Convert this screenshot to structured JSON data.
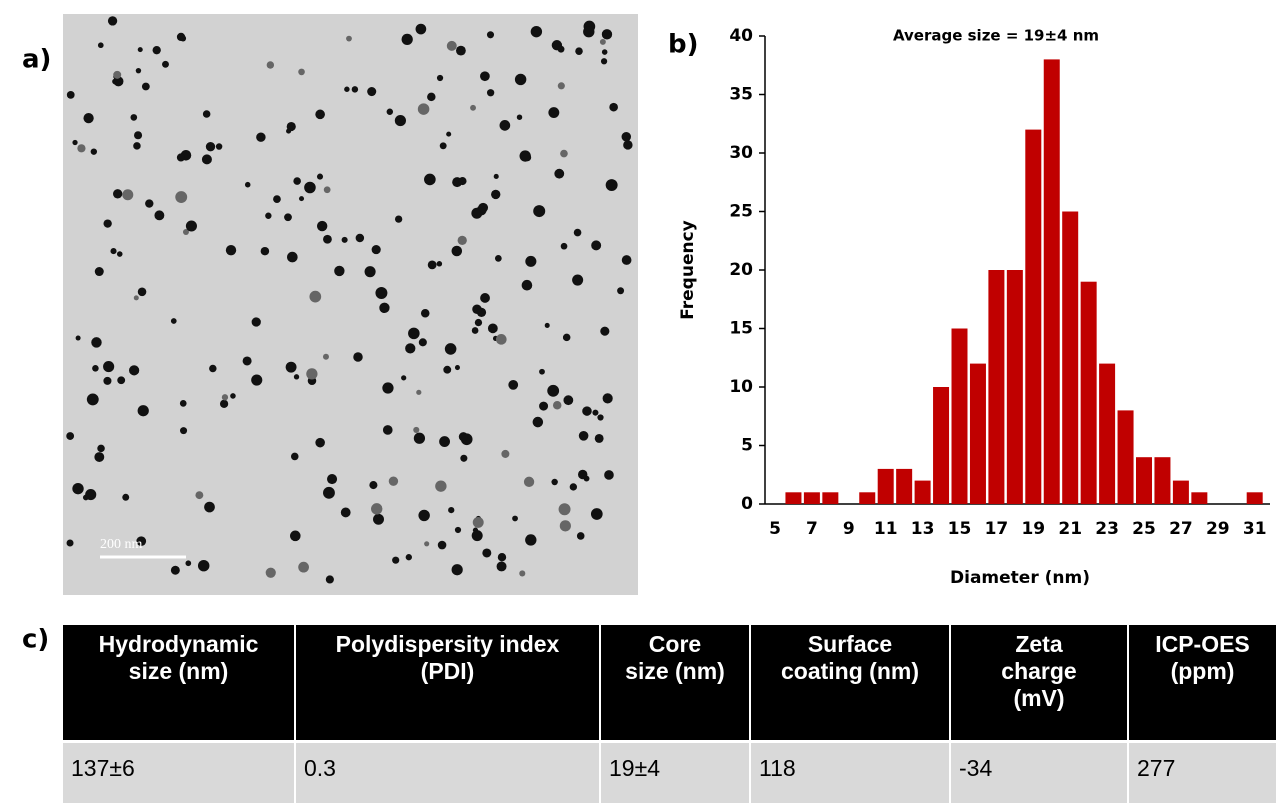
{
  "panel_labels": {
    "a": "a)",
    "b": "b)",
    "c": "c)"
  },
  "image": {
    "scale_bar": "200 nm"
  },
  "chart_data": {
    "type": "bar",
    "title": "Average size = 19±4 nm",
    "x_label": "Diameter (nm)",
    "y_label": "Frequency",
    "categories": [
      "5",
      null,
      "7",
      null,
      "9",
      null,
      "11",
      null,
      "13",
      null,
      "15",
      null,
      "17",
      null,
      "19",
      null,
      "21",
      null,
      "23",
      null,
      "25",
      null,
      "27",
      null,
      "29",
      null,
      "31"
    ],
    "values": [
      0,
      1,
      1,
      1,
      0,
      1,
      3,
      3,
      2,
      10,
      15,
      12,
      20,
      20,
      32,
      38,
      25,
      19,
      12,
      8,
      4,
      4,
      2,
      1,
      0,
      0,
      1
    ],
    "color": "#c00000",
    "ylim": [
      0,
      40
    ],
    "yticks": [
      0,
      5,
      10,
      15,
      20,
      25,
      30,
      35,
      40
    ],
    "grid": false
  },
  "table": {
    "header": [
      [
        "Hydrodynamic",
        "size (nm)"
      ],
      [
        "Polydispersity index",
        "(PDI)"
      ],
      [
        "Core",
        "size (nm)"
      ],
      [
        "Surface",
        "coating (nm)"
      ],
      [
        "Zeta",
        "charge",
        "(mV)"
      ],
      [
        "ICP-OES",
        "(ppm)"
      ]
    ],
    "rows": [
      [
        "137±6",
        "0.3",
        "19±4",
        "118",
        "-34",
        "277"
      ]
    ]
  }
}
